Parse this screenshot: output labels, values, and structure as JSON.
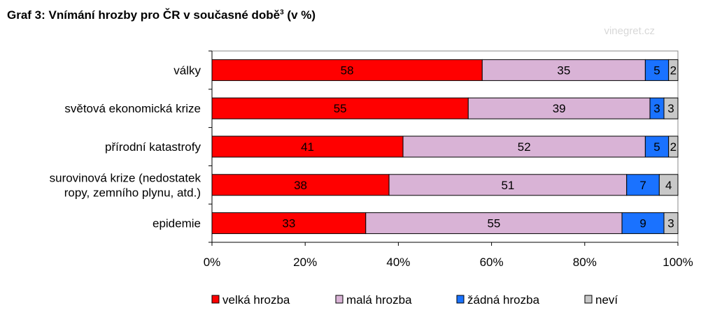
{
  "title": {
    "main": "Graf 3: Vnímání hrozby pro ČR v současné době",
    "sup": "3",
    "tail": " (v %)"
  },
  "watermark": "vinegret.cz",
  "chart_data": {
    "type": "bar",
    "orientation": "horizontal",
    "stacked": true,
    "categories": [
      [
        "války"
      ],
      [
        "světová ekonomická krize"
      ],
      [
        "přírodní katastrofy"
      ],
      [
        "surovinová krize (nedostatek",
        "ropy, zemního plynu, atd.)"
      ],
      [
        "epidemie"
      ]
    ],
    "series": [
      {
        "name": "velká hrozba",
        "color": "#ff0000",
        "values": [
          58,
          55,
          41,
          38,
          33
        ]
      },
      {
        "name": "malá hrozba",
        "color": "#d9b3d6",
        "values": [
          35,
          39,
          52,
          51,
          55
        ]
      },
      {
        "name": "žádná hrozba",
        "color": "#1a72ff",
        "values": [
          5,
          3,
          5,
          7,
          9
        ]
      },
      {
        "name": "neví",
        "color": "#c8c8c8",
        "values": [
          2,
          3,
          2,
          4,
          3
        ]
      }
    ],
    "xlim": [
      0,
      100
    ],
    "xticks": [
      "0%",
      "20%",
      "40%",
      "60%",
      "80%",
      "100%"
    ],
    "grid": false,
    "legend": "bottom"
  }
}
